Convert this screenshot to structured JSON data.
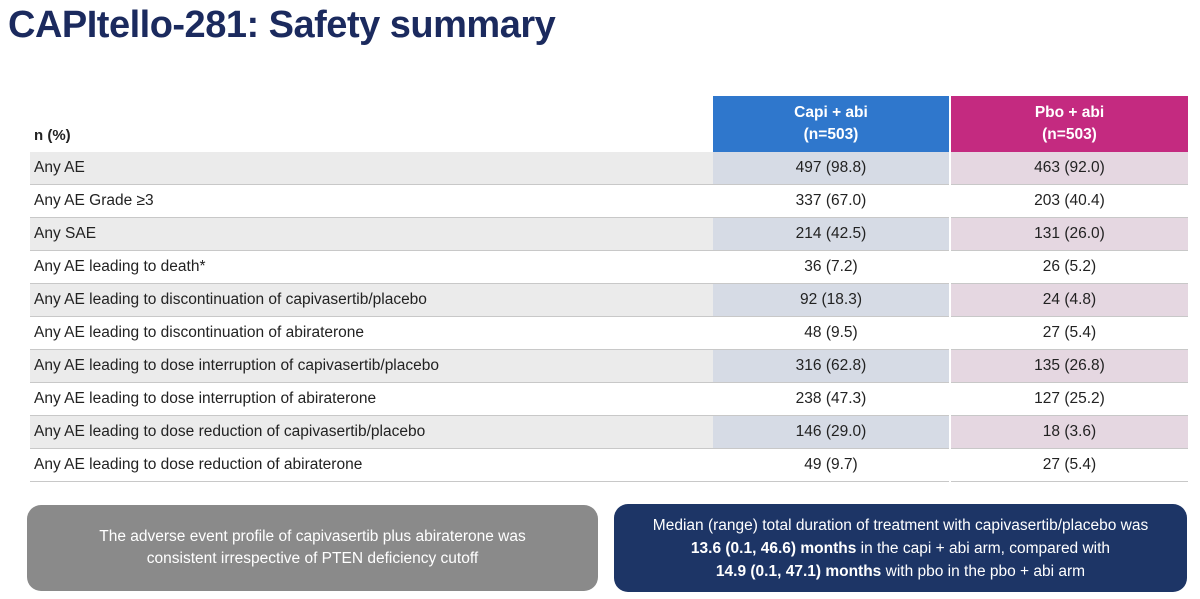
{
  "title": "CAPItello-281: Safety summary",
  "table": {
    "row_header": "n (%)",
    "columns": [
      {
        "name": "Capi + abi",
        "n": "(n=503)",
        "color": "#2f77cc"
      },
      {
        "name": "Pbo + abi",
        "n": "(n=503)",
        "color": "#c42a80"
      }
    ],
    "rows": [
      {
        "label": "Any AE",
        "capi": "497 (98.8)",
        "pbo": "463 (92.0)"
      },
      {
        "label": "Any AE Grade ≥3",
        "capi": "337 (67.0)",
        "pbo": "203 (40.4)"
      },
      {
        "label": "Any SAE",
        "capi": "214 (42.5)",
        "pbo": "131 (26.0)"
      },
      {
        "label": "Any AE leading to death*",
        "capi": "36 (7.2)",
        "pbo": "26 (5.2)"
      },
      {
        "label": "Any AE leading to discontinuation of capivasertib/placebo",
        "capi": "92 (18.3)",
        "pbo": "24 (4.8)"
      },
      {
        "label": "Any AE leading to discontinuation of abiraterone",
        "capi": "48 (9.5)",
        "pbo": "27 (5.4)"
      },
      {
        "label": "Any AE leading to dose interruption of capivasertib/placebo",
        "capi": "316 (62.8)",
        "pbo": "135 (26.8)"
      },
      {
        "label": "Any AE leading to dose interruption of abiraterone",
        "capi": "238 (47.3)",
        "pbo": "127 (25.2)"
      },
      {
        "label": "Any AE leading to dose reduction of capivasertib/placebo",
        "capi": "146 (29.0)",
        "pbo": "18 (3.6)"
      },
      {
        "label": "Any AE leading to dose reduction of abiraterone",
        "capi": "49 (9.7)",
        "pbo": "27 (5.4)"
      }
    ]
  },
  "callout_left": {
    "text": "The adverse event profile of capivasertib plus abiraterone was consistent irrespective of PTEN deficiency cutoff"
  },
  "callout_right": {
    "line1": "Median (range) total duration of treatment with capivasertib/placebo was",
    "line2_bold": "13.6 (0.1, 46.6) months",
    "line2_rest": " in the capi + abi arm, compared with",
    "line3_bold": "14.9 (0.1, 47.1) months",
    "line3_rest": " with pbo in the pbo + abi arm"
  }
}
